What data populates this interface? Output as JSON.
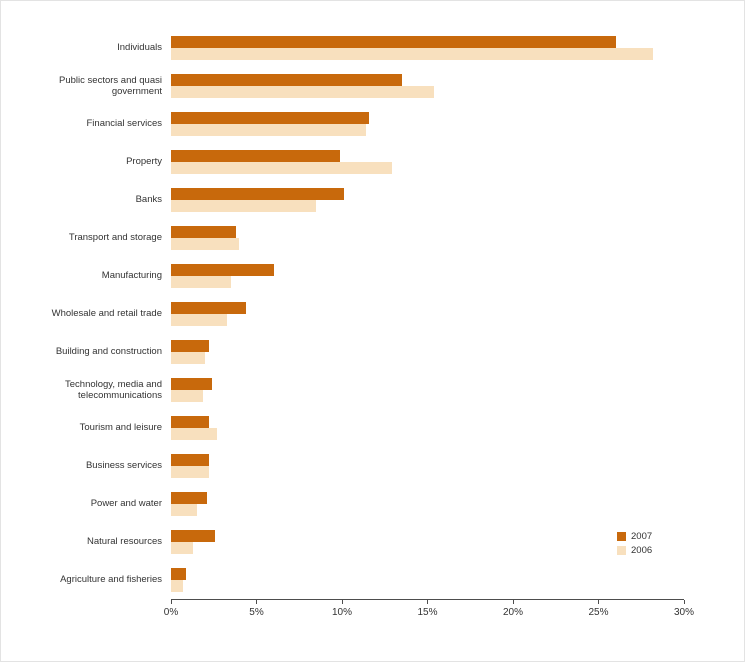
{
  "chart_data": {
    "type": "bar",
    "orientation": "horizontal",
    "title": "",
    "xlabel": "",
    "ylabel": "",
    "xlim": [
      0,
      30
    ],
    "x_ticks": [
      "0%",
      "5%",
      "10%",
      "15%",
      "20%",
      "25%",
      "30%"
    ],
    "grid": false,
    "legend_position": "bottom-right",
    "categories": [
      "Individuals",
      "Public sectors and quasi government",
      "Financial services",
      "Property",
      "Banks",
      "Transport and storage",
      "Manufacturing",
      "Wholesale and retail trade",
      "Building and construction",
      "Technology, media and telecommunications",
      "Tourism and leisure",
      "Business services",
      "Power and water",
      "Natural resources",
      "Agriculture and fisheries"
    ],
    "series": [
      {
        "name": "2007",
        "color": "#C8690C",
        "values": [
          26.0,
          13.5,
          11.6,
          9.9,
          10.1,
          3.8,
          6.0,
          4.4,
          2.2,
          2.4,
          2.2,
          2.2,
          2.1,
          2.6,
          0.9
        ]
      },
      {
        "name": "2006",
        "color": "#F8E0BE",
        "values": [
          28.2,
          15.4,
          11.4,
          12.9,
          8.5,
          4.0,
          3.5,
          3.3,
          2.0,
          1.9,
          2.7,
          2.2,
          1.5,
          1.3,
          0.7
        ]
      }
    ]
  }
}
